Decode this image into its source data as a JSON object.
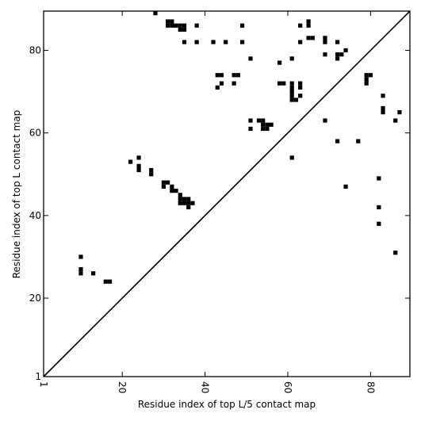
{
  "chart_data": {
    "type": "heatmap",
    "title": "",
    "xlabel": "Residue index of top L/5 contact map",
    "ylabel": "Residue index of top L contact map",
    "xlim": [
      1,
      89.5
    ],
    "ylim": [
      1,
      89.5
    ],
    "xticks": [
      1,
      20,
      40,
      60,
      80
    ],
    "yticks": [
      1,
      20,
      40,
      60,
      80
    ],
    "diagonal": true,
    "grid": false,
    "cell_color": "#000000",
    "upper_contacts": [
      [
        28,
        89
      ],
      [
        31,
        87
      ],
      [
        32,
        87
      ],
      [
        31,
        86
      ],
      [
        32,
        86
      ],
      [
        33,
        86
      ],
      [
        34,
        86
      ],
      [
        35,
        86
      ],
      [
        34,
        85
      ],
      [
        35,
        85
      ],
      [
        38,
        86
      ],
      [
        35,
        82
      ],
      [
        38,
        82
      ],
      [
        42,
        82
      ],
      [
        45,
        82
      ],
      [
        49,
        86
      ],
      [
        49,
        82
      ],
      [
        51,
        78
      ],
      [
        58,
        77
      ],
      [
        61,
        78
      ],
      [
        63,
        86
      ],
      [
        63,
        82
      ],
      [
        65,
        87
      ],
      [
        65,
        86
      ],
      [
        65,
        83
      ],
      [
        66,
        83
      ],
      [
        69,
        83
      ],
      [
        69,
        82
      ],
      [
        72,
        82
      ],
      [
        69,
        79
      ],
      [
        72,
        79
      ],
      [
        73,
        79
      ],
      [
        72,
        78
      ],
      [
        74,
        80
      ],
      [
        43,
        74
      ],
      [
        44,
        74
      ],
      [
        47,
        74
      ],
      [
        48,
        74
      ],
      [
        44,
        72
      ],
      [
        47,
        72
      ],
      [
        43,
        71
      ],
      [
        58,
        72
      ],
      [
        59,
        72
      ],
      [
        61,
        72
      ],
      [
        61,
        71
      ],
      [
        61,
        70
      ],
      [
        61,
        69
      ],
      [
        61,
        68
      ],
      [
        62,
        68
      ],
      [
        63,
        72
      ],
      [
        63,
        71
      ],
      [
        63,
        69
      ],
      [
        51,
        63
      ],
      [
        53,
        63
      ],
      [
        54,
        63
      ],
      [
        54,
        62
      ],
      [
        55,
        62
      ],
      [
        56,
        62
      ],
      [
        54,
        61
      ],
      [
        55,
        61
      ],
      [
        51,
        61
      ],
      [
        69,
        63
      ],
      [
        61,
        54
      ],
      [
        72,
        58
      ],
      [
        77,
        58
      ],
      [
        74,
        47
      ],
      [
        79,
        74
      ],
      [
        79,
        73
      ],
      [
        80,
        74
      ],
      [
        79,
        72
      ],
      [
        83,
        69
      ],
      [
        83,
        66
      ],
      [
        83,
        65
      ],
      [
        86,
        63
      ],
      [
        87,
        65
      ],
      [
        82,
        49
      ],
      [
        82,
        42
      ],
      [
        82,
        38
      ],
      [
        86,
        31
      ]
    ],
    "lower_contacts": [
      [
        22,
        53
      ],
      [
        24,
        54
      ],
      [
        24,
        52
      ],
      [
        24,
        51
      ],
      [
        27,
        51
      ],
      [
        27,
        50
      ],
      [
        30,
        48
      ],
      [
        31,
        48
      ],
      [
        30,
        47
      ],
      [
        32,
        47
      ],
      [
        32,
        46
      ],
      [
        33,
        46
      ],
      [
        34,
        45
      ],
      [
        34,
        44
      ],
      [
        34,
        43
      ],
      [
        35,
        44
      ],
      [
        35,
        43
      ],
      [
        36,
        44
      ],
      [
        36,
        43
      ],
      [
        37,
        43
      ],
      [
        36,
        42
      ],
      [
        10,
        30
      ],
      [
        10,
        27
      ],
      [
        10,
        26
      ],
      [
        13,
        26
      ],
      [
        16,
        24
      ],
      [
        17,
        24
      ]
    ]
  }
}
